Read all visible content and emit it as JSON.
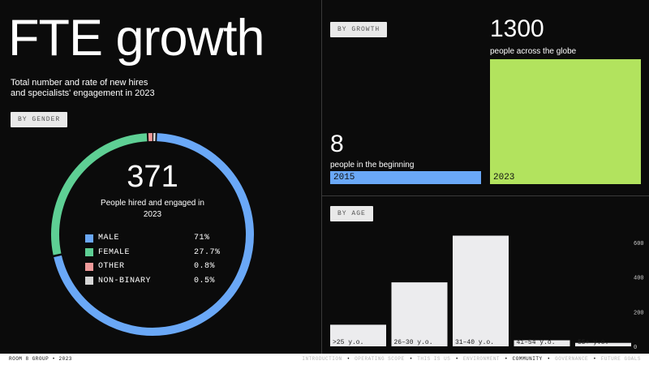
{
  "title": "FTE growth",
  "subtitle_line1": "Total number and rate of new hires",
  "subtitle_line2": "and specialists' engagement in 2023",
  "tags": {
    "gender": "BY GENDER",
    "growth": "BY GROWTH",
    "age": "BY AGE"
  },
  "donut": {
    "total": "371",
    "label_line1": "People hired and engaged in",
    "label_line2": "2023",
    "legend": [
      {
        "name": "MALE",
        "value": "71%",
        "color": "#6aa8f7"
      },
      {
        "name": "FEMALE",
        "value": "27.7%",
        "color": "#5ecf94"
      },
      {
        "name": "OTHER",
        "value": "0.8%",
        "color": "#ef9a9a"
      },
      {
        "name": "NON-BINARY",
        "value": "0.5%",
        "color": "#d6d6d6"
      }
    ]
  },
  "growth": {
    "start": {
      "value": "8",
      "caption": "people in the beginning",
      "year": "2015",
      "color": "#6aa8f7"
    },
    "end": {
      "value": "1300",
      "caption": "people across the globe",
      "year": "2023",
      "color": "#b2e35e"
    }
  },
  "chart_data": [
    {
      "type": "pie",
      "title": "",
      "categories": [
        "MALE",
        "FEMALE",
        "OTHER",
        "NON-BINARY"
      ],
      "values": [
        71,
        27.7,
        0.8,
        0.5
      ],
      "colors": [
        "#6aa8f7",
        "#5ecf94",
        "#ef9a9a",
        "#d6d6d6"
      ],
      "total": 371
    },
    {
      "type": "bar",
      "title": "",
      "categories": [
        "2015",
        "2023"
      ],
      "values": [
        8,
        1300
      ]
    },
    {
      "type": "bar",
      "title": "",
      "categories": [
        ">25 y.o.",
        "26–30 y.o.",
        "31–40 y.o.",
        "41–54 y.o.",
        "55+ y.o."
      ],
      "values": [
        125,
        370,
        640,
        35,
        20
      ],
      "ylim": [
        0,
        680
      ],
      "yticks": [
        "0",
        "200",
        "400",
        "600"
      ],
      "grid": false
    }
  ],
  "footer": {
    "left": "ROOM 8 GROUP • 2023",
    "nav": [
      "INTRODUCTION",
      "OPERATING SCOPE",
      "THIS IS US",
      "ENVIRONMENT",
      "COMMUNITY",
      "GOVERNANCE",
      "FUTURE GOALS"
    ],
    "active_index": 4
  }
}
